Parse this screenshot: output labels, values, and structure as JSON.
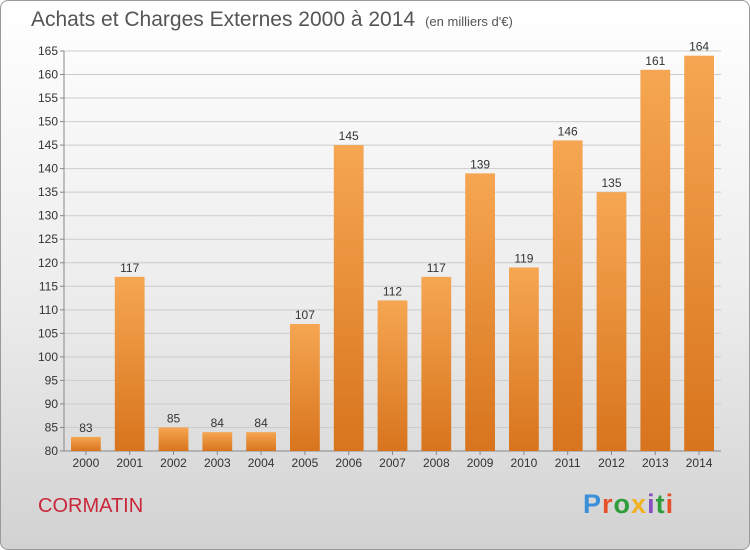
{
  "header": {
    "title": "Achats et Charges Externes 2000 à 2014",
    "subtitle": "(en milliers d'€)"
  },
  "location": "CORMATIN",
  "logo": {
    "text": "Proxiti",
    "letter_colors": [
      "#3a8fd8",
      "#e8502a",
      "#2f9e3a",
      "#f2b11f",
      "#8a4fc0",
      "#2f9e3a",
      "#e8502a"
    ]
  },
  "colors": {
    "bar_light": "#f6a652",
    "bar_dark": "#d8741d",
    "grid": "#cccccc",
    "text": "#333333"
  },
  "chart_data": {
    "type": "bar",
    "title": "Achats et Charges Externes 2000 à 2014",
    "categories": [
      "2000",
      "2001",
      "2002",
      "2003",
      "2004",
      "2005",
      "2006",
      "2007",
      "2008",
      "2009",
      "2010",
      "2011",
      "2012",
      "2013",
      "2014"
    ],
    "values": [
      83,
      117,
      85,
      84,
      84,
      107,
      145,
      112,
      117,
      139,
      119,
      146,
      135,
      161,
      164
    ],
    "ylim": [
      80,
      165
    ],
    "yticks": [
      80,
      85,
      90,
      95,
      100,
      105,
      110,
      115,
      120,
      125,
      130,
      135,
      140,
      145,
      150,
      155,
      160,
      165
    ],
    "grid": true,
    "legend": "none"
  }
}
